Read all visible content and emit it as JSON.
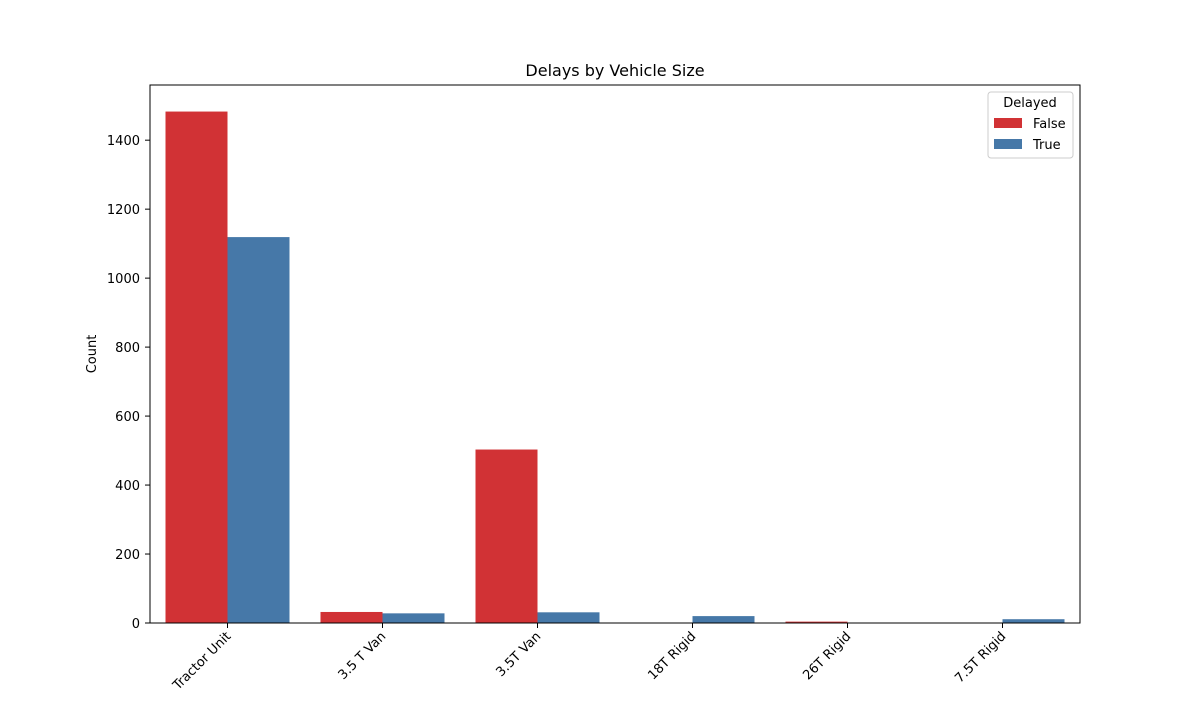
{
  "chart_data": {
    "type": "bar",
    "title": "Delays by Vehicle Size",
    "xlabel": "",
    "ylabel": "Count",
    "categories": [
      "Tractor Unit",
      "3.5 T Van",
      "3.5T Van",
      "18T Rigid",
      "26T Rigid",
      "7.5T Rigid"
    ],
    "series": [
      {
        "name": "False",
        "color": "#d13235",
        "values": [
          1483,
          32,
          503,
          0,
          4,
          0
        ]
      },
      {
        "name": "True",
        "color": "#4678a8",
        "values": [
          1119,
          28,
          31,
          20,
          0,
          11
        ]
      }
    ],
    "ylim": [
      0,
      1560
    ],
    "yticks": [
      0,
      200,
      400,
      600,
      800,
      1000,
      1200,
      1400
    ],
    "grid": false,
    "legend": {
      "title": "Delayed",
      "placement": "top-right"
    }
  }
}
